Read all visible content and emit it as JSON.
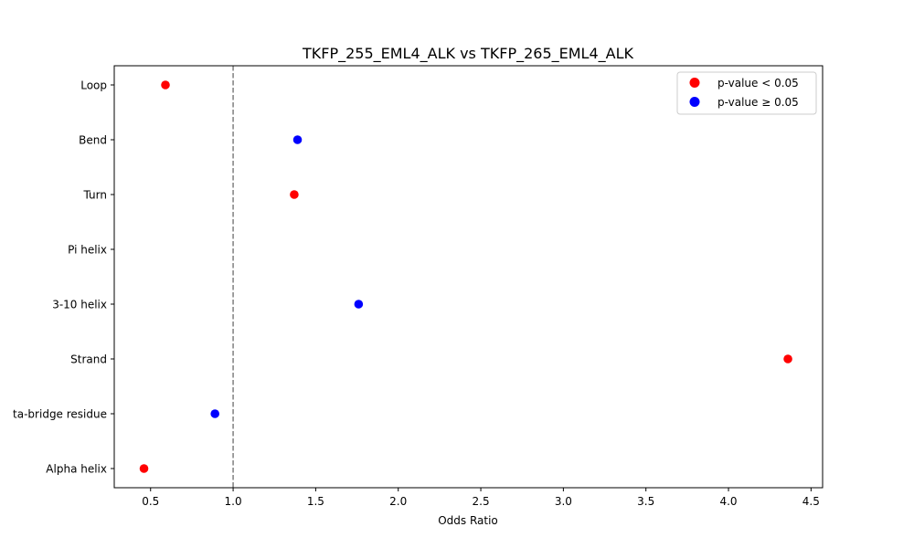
{
  "chart_data": {
    "type": "scatter",
    "title": "TKFP_255_EML4_ALK vs TKFP_265_EML4_ALK",
    "xlabel": "Odds Ratio",
    "ylabel": "",
    "xlim": [
      0.28,
      4.57
    ],
    "xticks": [
      0.5,
      1.0,
      1.5,
      2.0,
      2.5,
      3.0,
      3.5,
      4.0,
      4.5
    ],
    "xtick_labels": [
      "0.5",
      "1.0",
      "1.5",
      "2.0",
      "2.5",
      "3.0",
      "3.5",
      "4.0",
      "4.5"
    ],
    "categories": [
      "Loop",
      "Bend",
      "Turn",
      "Pi helix",
      "3-10 helix",
      "Strand",
      "Beta-bridge residue",
      "Alpha helix"
    ],
    "visible_category_labels": [
      "Loop",
      "Bend",
      "Turn",
      "Pi helix",
      "3-10 helix",
      "Strand",
      "ta-bridge residue",
      "Alpha helix"
    ],
    "points": [
      {
        "category": "Loop",
        "x": 0.59,
        "significant": true
      },
      {
        "category": "Bend",
        "x": 1.39,
        "significant": false
      },
      {
        "category": "Turn",
        "x": 1.37,
        "significant": true
      },
      {
        "category": "Pi helix",
        "x": null,
        "significant": null
      },
      {
        "category": "3-10 helix",
        "x": 1.76,
        "significant": false
      },
      {
        "category": "Strand",
        "x": 4.36,
        "significant": true
      },
      {
        "category": "Beta-bridge residue",
        "x": 0.89,
        "significant": false
      },
      {
        "category": "Alpha helix",
        "x": 0.46,
        "significant": true
      }
    ],
    "reference_line": {
      "x": 1.0,
      "style": "dashed",
      "color": "#808080"
    },
    "legend": {
      "position": "upper right",
      "entries": [
        {
          "label": "p-value < 0.05",
          "color": "#ff0000"
        },
        {
          "label": "p-value ≥ 0.05",
          "color": "#0000ff"
        }
      ]
    },
    "grid": false
  },
  "colors": {
    "significant": "#ff0000",
    "not_significant": "#0000ff",
    "refline": "#808080"
  }
}
